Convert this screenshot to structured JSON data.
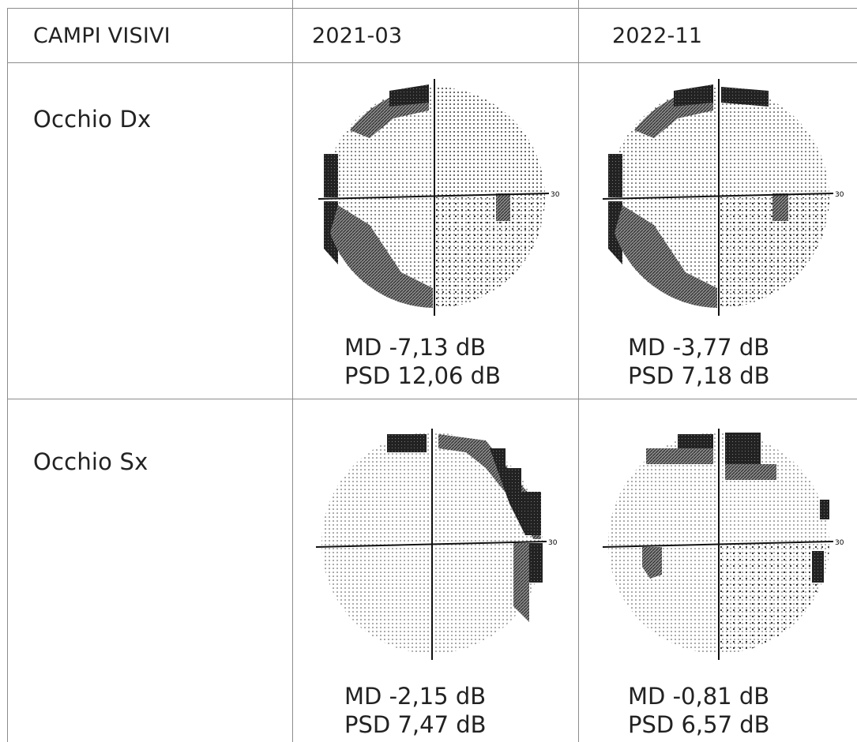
{
  "table": {
    "header": {
      "corner": "CAMPI VISIVI",
      "col1": "2021-03",
      "col2": "2022-11"
    },
    "rows": [
      {
        "label": "Occhio Dx",
        "cells": [
          {
            "md": "MD -7,13 dB",
            "psd": "PSD 12,06 dB",
            "axis_label": "30"
          },
          {
            "md": "MD -3,77 dB",
            "psd": "PSD 7,18 dB",
            "axis_label": "30"
          }
        ]
      },
      {
        "label": "Occhio Sx",
        "cells": [
          {
            "md": "MD -2,15 dB",
            "psd": "PSD 7,47 dB",
            "axis_label": "30"
          },
          {
            "md": "MD -0,81 dB",
            "psd": "PSD 6,57 dB",
            "axis_label": "30"
          }
        ]
      }
    ]
  }
}
